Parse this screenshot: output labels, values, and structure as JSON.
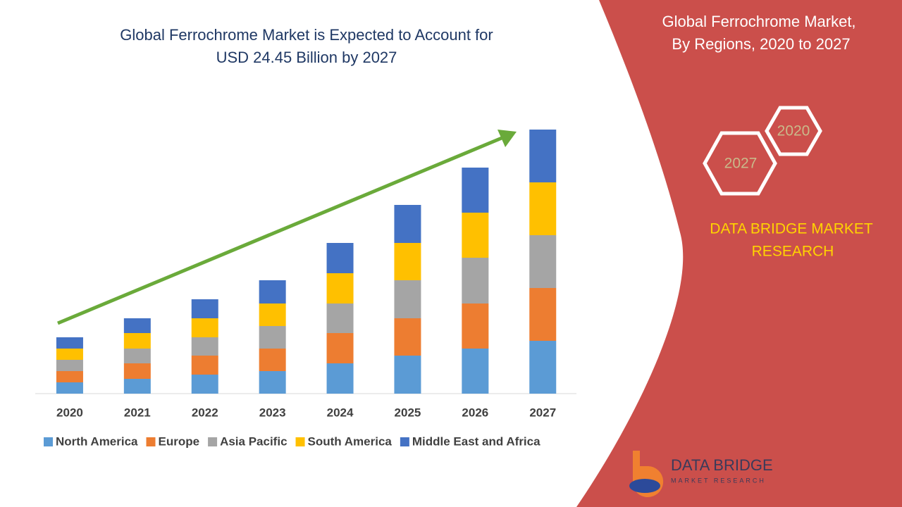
{
  "chart_data": {
    "type": "bar",
    "stacked": true,
    "title": [
      "Global Ferrochrome Market is Expected to Account for",
      "USD 24.45 Billion by 2027"
    ],
    "categories": [
      "2020",
      "2021",
      "2022",
      "2023",
      "2024",
      "2025",
      "2026",
      "2027"
    ],
    "series": [
      {
        "name": "North America",
        "color": "#5b9bd5",
        "values": [
          16,
          21,
          27,
          32,
          43,
          54,
          64,
          75
        ]
      },
      {
        "name": "Europe",
        "color": "#ed7d31",
        "values": [
          16,
          22,
          27,
          32,
          43,
          53,
          64,
          75
        ]
      },
      {
        "name": "Asia Pacific",
        "color": "#a5a5a5",
        "values": [
          16,
          21,
          26,
          32,
          42,
          54,
          65,
          75
        ]
      },
      {
        "name": "South America",
        "color": "#ffc000",
        "values": [
          16,
          22,
          27,
          32,
          43,
          53,
          64,
          75
        ]
      },
      {
        "name": "Middle East and Africa",
        "color": "#4472c4",
        "values": [
          16,
          21,
          27,
          33,
          43,
          54,
          64,
          75
        ]
      }
    ]
  },
  "panel": {
    "heading": [
      "Global Ferrochrome Market,",
      "By Regions,  2020 to 2027"
    ],
    "hexagons": [
      "2020",
      "2027"
    ],
    "brand": [
      "DATA BRIDGE MARKET",
      "RESEARCH"
    ],
    "logo": {
      "name": "DATA BRIDGE",
      "tagline": "MARKET RESEARCH"
    }
  }
}
